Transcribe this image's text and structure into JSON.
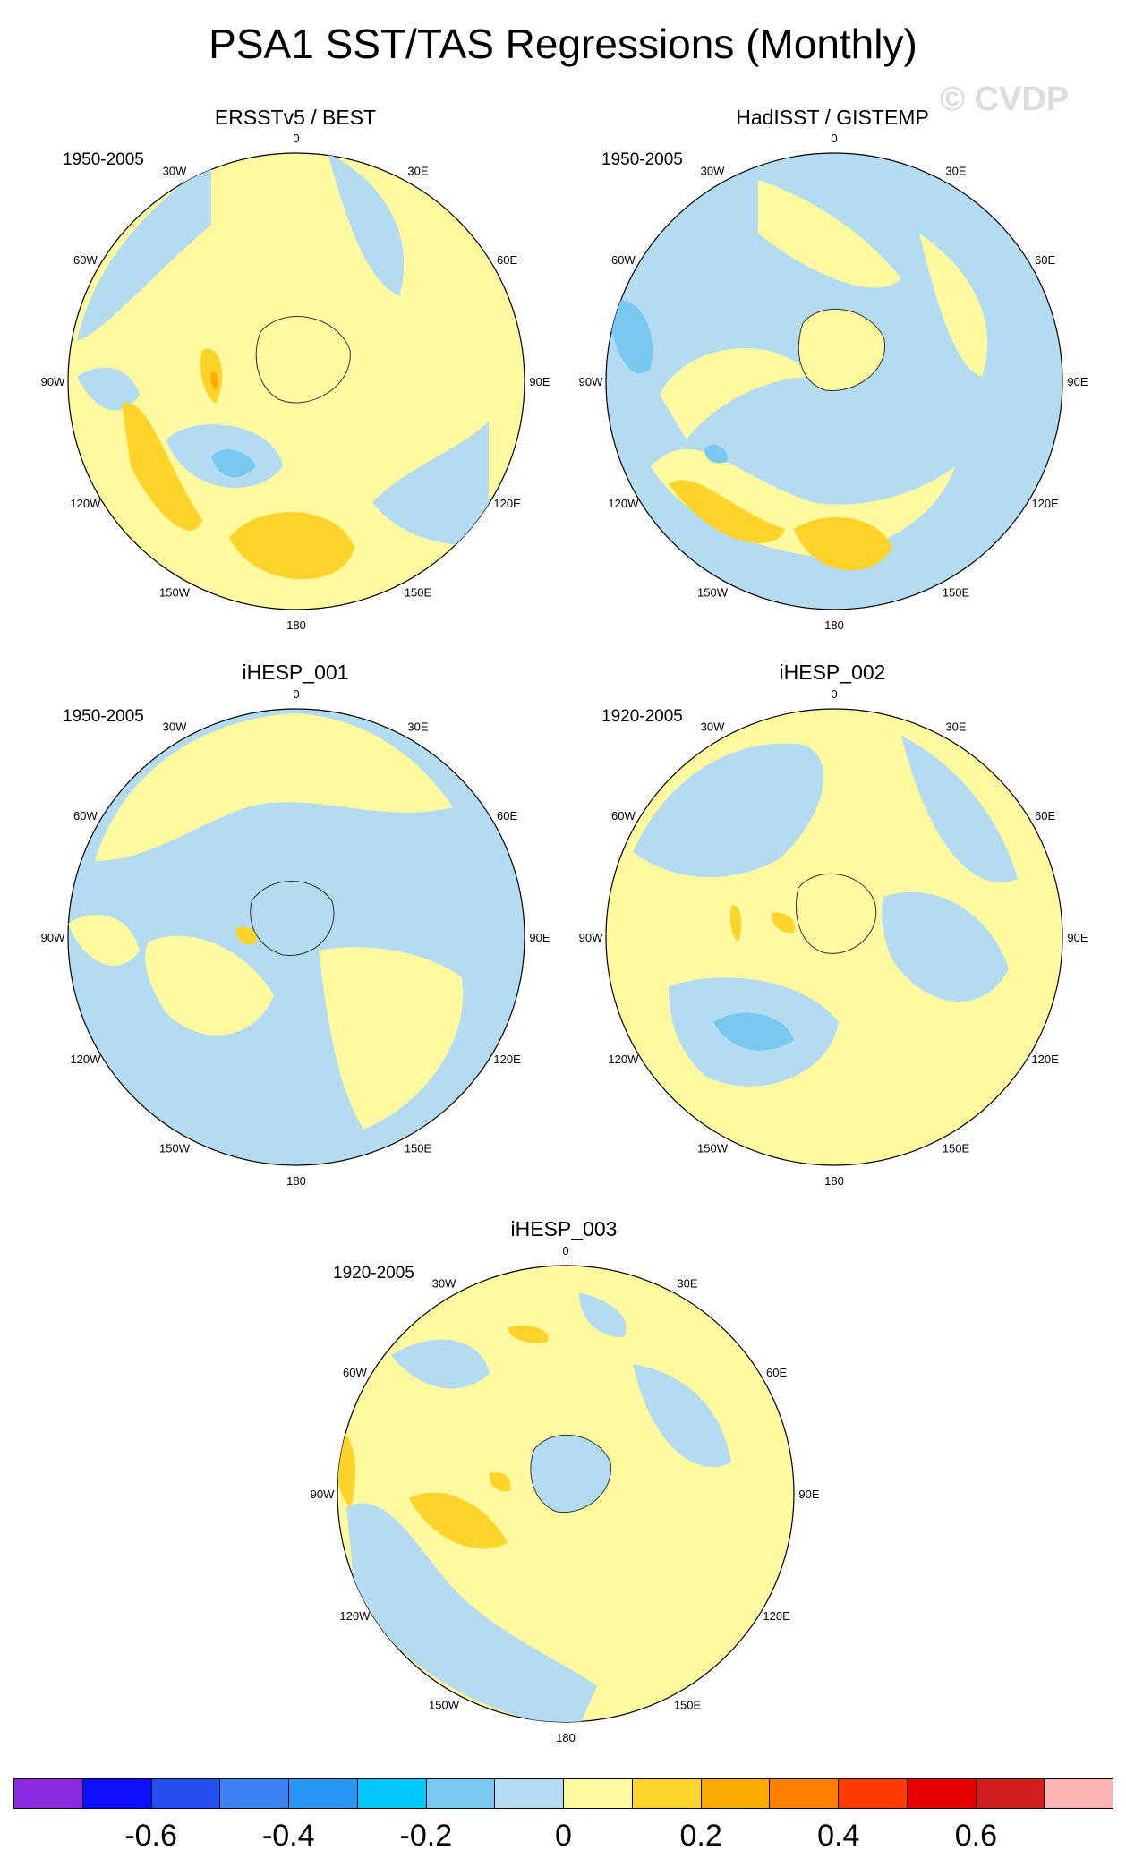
{
  "title": "PSA1 SST/TAS Regressions (Monthly)",
  "watermark": "© CVDP",
  "lon_labels": [
    "0",
    "30E",
    "60E",
    "90E",
    "120E",
    "150E",
    "180",
    "150W",
    "120W",
    "90W",
    "60W",
    "30W"
  ],
  "panels": [
    {
      "name": "ERSSTv5 / BEST",
      "period": "1950-2005",
      "background": "#fff9a0"
    },
    {
      "name": "HadISST / GISTEMP",
      "period": "1950-2005",
      "background": "#b3dcf2"
    },
    {
      "name": "iHESP_001",
      "period": "1950-2005",
      "background": "#b3dcf2"
    },
    {
      "name": "iHESP_002",
      "period": "1920-2005",
      "background": "#fff9a0"
    },
    {
      "name": "iHESP_003",
      "period": "1920-2005",
      "background": "#fff9a0"
    }
  ],
  "colorbar": {
    "colors": [
      "#8a2be2",
      "#0f0fff",
      "#2450f0",
      "#3c82f0",
      "#2896f5",
      "#00c8fa",
      "#78c8f0",
      "#b3dcf2",
      "#fff9a0",
      "#ffd42a",
      "#ffaa00",
      "#ff7f00",
      "#ff3c00",
      "#e60000",
      "#d21e1e",
      "#ffb4b4"
    ],
    "labels": [
      "-0.6",
      "-0.4",
      "-0.2",
      "0",
      "0.2",
      "0.4",
      "0.6"
    ]
  }
}
